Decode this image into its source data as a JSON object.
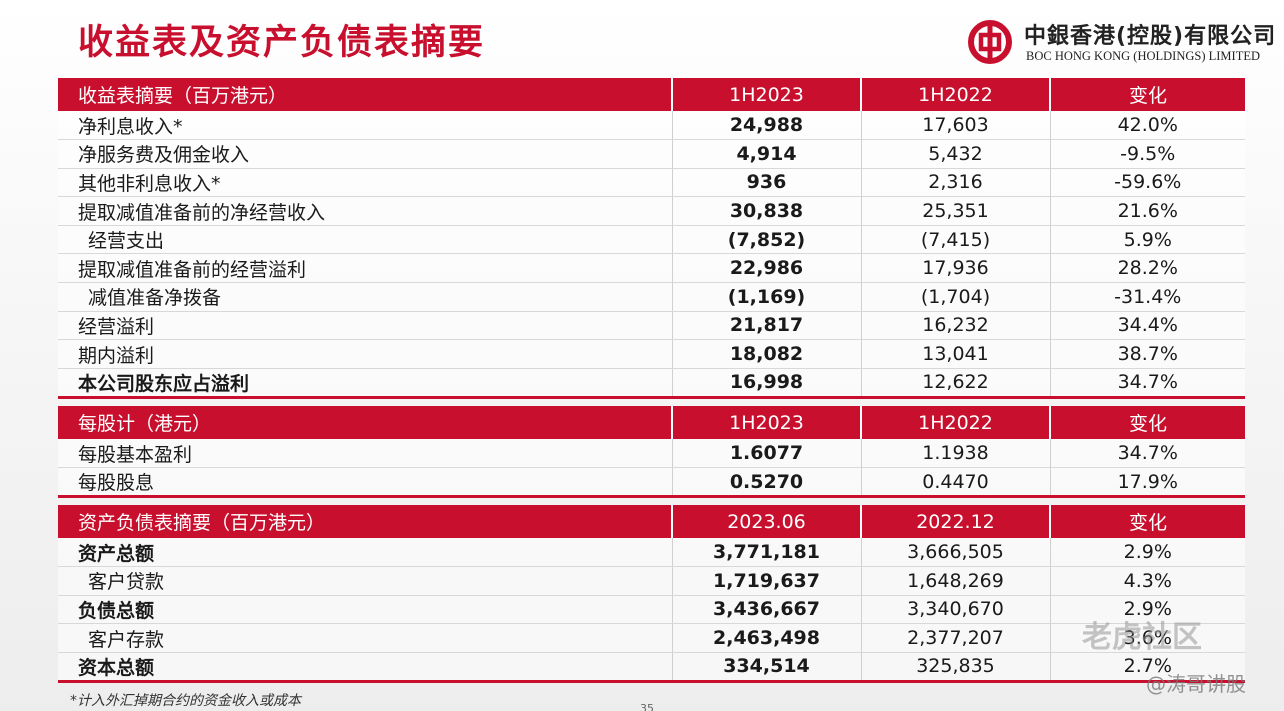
{
  "title": "收益表及资产负债表摘要",
  "logo": {
    "cn": "中銀香港(控股)有限公司",
    "en": "BOC HONG KONG (HOLDINGS) LIMITED"
  },
  "income": {
    "headers": [
      "收益表摘要（百万港元）",
      "1H2023",
      "1H2022",
      "变化"
    ],
    "rows": [
      {
        "label": "净利息收入*",
        "a": "24,988",
        "b": "17,603",
        "c": "42.0%"
      },
      {
        "label": "净服务费及佣金收入",
        "a": "4,914",
        "b": "5,432",
        "c": "-9.5%"
      },
      {
        "label": "其他非利息收入*",
        "a": "936",
        "b": "2,316",
        "c": "-59.6%"
      },
      {
        "label": "提取减值准备前的净经营收入",
        "a": "30,838",
        "b": "25,351",
        "c": "21.6%"
      },
      {
        "label": "经营支出",
        "a": "(7,852)",
        "b": "(7,415)",
        "c": "5.9%"
      },
      {
        "label": "提取减值准备前的经营溢利",
        "a": "22,986",
        "b": "17,936",
        "c": "28.2%"
      },
      {
        "label": "减值准备净拨备",
        "a": "(1,169)",
        "b": "(1,704)",
        "c": "-31.4%"
      },
      {
        "label": "经营溢利",
        "a": "21,817",
        "b": "16,232",
        "c": "34.4%"
      },
      {
        "label": "期内溢利",
        "a": "18,082",
        "b": "13,041",
        "c": "38.7%"
      },
      {
        "label": "本公司股东应占溢利",
        "a": "16,998",
        "b": "12,622",
        "c": "34.7%"
      }
    ]
  },
  "per_share": {
    "headers": [
      "每股计（港元）",
      "1H2023",
      "1H2022",
      "变化"
    ],
    "rows": [
      {
        "label": "每股基本盈利",
        "a": "1.6077",
        "b": "1.1938",
        "c": "34.7%"
      },
      {
        "label": "每股股息",
        "a": "0.5270",
        "b": "0.4470",
        "c": "17.9%"
      }
    ]
  },
  "balance": {
    "headers": [
      "资产负债表摘要（百万港元）",
      "2023.06",
      "2022.12",
      "变化"
    ],
    "rows": [
      {
        "label": "资产总额",
        "a": "3,771,181",
        "b": "3,666,505",
        "c": "2.9%"
      },
      {
        "label": "客户贷款",
        "a": "1,719,637",
        "b": "1,648,269",
        "c": "4.3%"
      },
      {
        "label": "负债总额",
        "a": "3,436,667",
        "b": "3,340,670",
        "c": "2.9%"
      },
      {
        "label": "客户存款",
        "a": "2,463,498",
        "b": "2,377,207",
        "c": "3.6%"
      },
      {
        "label": "资本总额",
        "a": "334,514",
        "b": "325,835",
        "c": "2.7%"
      }
    ]
  },
  "footnote": "*计入外汇掉期合约的资金收入或成本",
  "watermark": "老虎社区",
  "watermark2": "@涛哥讲股",
  "page_number": "35",
  "colors": {
    "accent": "#c8102e"
  }
}
